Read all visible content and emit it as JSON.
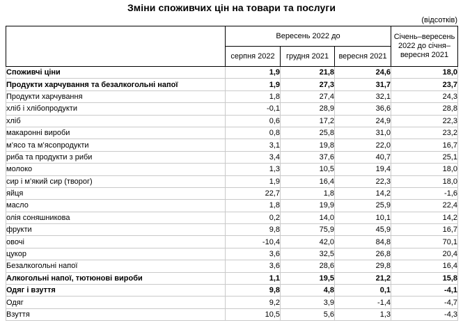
{
  "title": "Зміни споживчих цін на товари та послуги",
  "unit_note": "(відсотків)",
  "table": {
    "corner_header": "",
    "group_header": "Вересень 2022 до",
    "sub_headers": [
      "серпня 2022",
      "грудня 2021",
      "вересня 2021"
    ],
    "period_header": "Січень–вересень 2022 до січня–вересня 2021",
    "rows": [
      {
        "label": "Споживчі ціни",
        "indent": 0,
        "bold": true,
        "values": [
          "1,9",
          "21,8",
          "24,6",
          "18,0"
        ]
      },
      {
        "label": "Продукти харчування та безалкогольні напої",
        "indent": 1,
        "bold": true,
        "values": [
          "1,9",
          "27,3",
          "31,7",
          "23,7"
        ]
      },
      {
        "label": "Продукти харчування",
        "indent": 2,
        "bold": false,
        "values": [
          "1,8",
          "27,4",
          "32,1",
          "24,3"
        ]
      },
      {
        "label": "хліб і хлібопродукти",
        "indent": 3,
        "bold": false,
        "values": [
          "-0,1",
          "28,9",
          "36,6",
          "28,8"
        ]
      },
      {
        "label": "хліб",
        "indent": 3,
        "bold": false,
        "values": [
          "0,6",
          "17,2",
          "24,9",
          "22,3"
        ]
      },
      {
        "label": "макаронні вироби",
        "indent": 3,
        "bold": false,
        "values": [
          "0,8",
          "25,8",
          "31,0",
          "23,2"
        ]
      },
      {
        "label": "м’ясо та м’ясопродукти",
        "indent": 3,
        "bold": false,
        "values": [
          "3,1",
          "19,8",
          "22,0",
          "16,7"
        ]
      },
      {
        "label": "риба та продукти з риби",
        "indent": 3,
        "bold": false,
        "values": [
          "3,4",
          "37,6",
          "40,7",
          "25,1"
        ]
      },
      {
        "label": "молоко",
        "indent": 3,
        "bold": false,
        "values": [
          "1,3",
          "10,5",
          "19,4",
          "18,0"
        ]
      },
      {
        "label": "сир і м’який сир (творог)",
        "indent": 3,
        "bold": false,
        "values": [
          "1,9",
          "16,4",
          "22,3",
          "18,0"
        ]
      },
      {
        "label": "яйця",
        "indent": 3,
        "bold": false,
        "values": [
          "22,7",
          "1,8",
          "14,2",
          "-1,6"
        ]
      },
      {
        "label": "масло",
        "indent": 3,
        "bold": false,
        "values": [
          "1,8",
          "19,9",
          "25,9",
          "22,4"
        ]
      },
      {
        "label": "олія соняшникова",
        "indent": 3,
        "bold": false,
        "values": [
          "0,2",
          "14,0",
          "10,1",
          "14,2"
        ]
      },
      {
        "label": "фрукти",
        "indent": 3,
        "bold": false,
        "values": [
          "9,8",
          "75,9",
          "45,9",
          "16,7"
        ]
      },
      {
        "label": "овочі",
        "indent": 3,
        "bold": false,
        "values": [
          "-10,4",
          "42,0",
          "84,8",
          "70,1"
        ]
      },
      {
        "label": "цукор",
        "indent": 3,
        "bold": false,
        "values": [
          "3,6",
          "32,5",
          "26,8",
          "20,4"
        ]
      },
      {
        "label": "Безалкогольні напої",
        "indent": 2,
        "bold": false,
        "values": [
          "3,6",
          "28,6",
          "29,8",
          "16,4"
        ]
      },
      {
        "label": "Алкогольні напої, тютюнові вироби",
        "indent": 1,
        "bold": true,
        "values": [
          "1,1",
          "19,5",
          "21,2",
          "15,8"
        ]
      },
      {
        "label": "Одяг і взуття",
        "indent": 1,
        "bold": true,
        "values": [
          "9,8",
          "4,8",
          "0,1",
          "-4,1"
        ]
      },
      {
        "label": "Одяг",
        "indent": 2,
        "bold": false,
        "values": [
          "9,2",
          "3,9",
          "-1,4",
          "-4,7"
        ]
      },
      {
        "label": "Взуття",
        "indent": 2,
        "bold": false,
        "values": [
          "10,5",
          "5,6",
          "1,3",
          "-4,3"
        ]
      }
    ]
  }
}
